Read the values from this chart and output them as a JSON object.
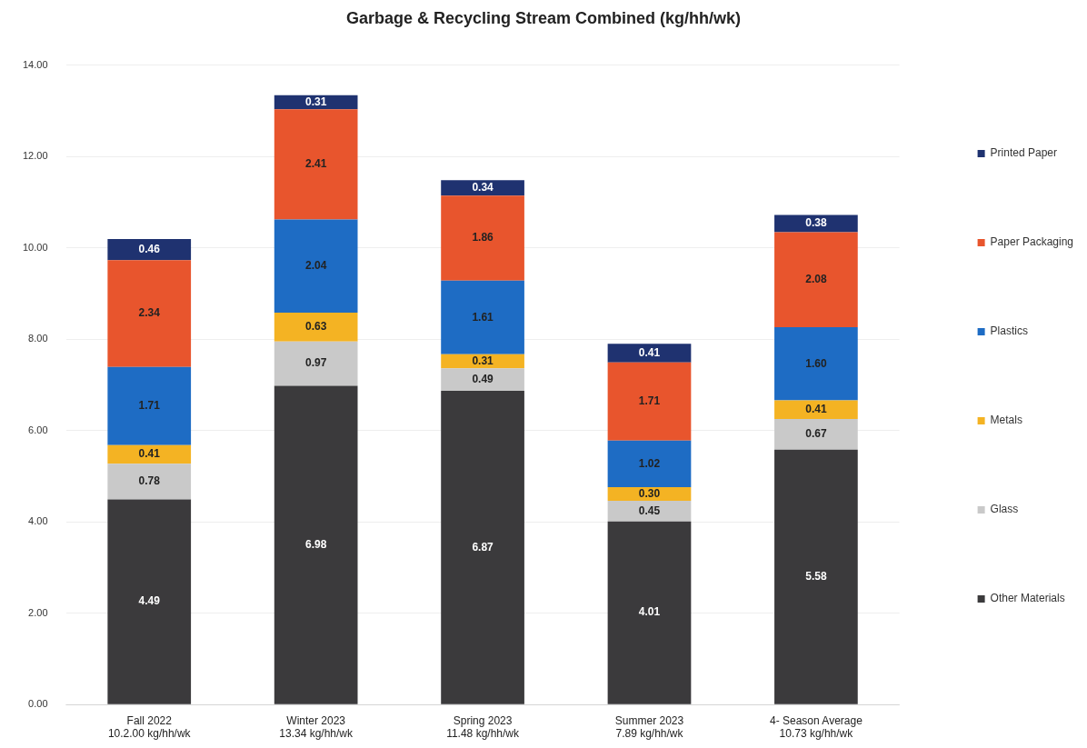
{
  "chart_data": {
    "type": "bar",
    "title": "Garbage & Recycling Stream Combined (kg/hh/wk)",
    "categories": [
      "Fall 2022\n10.2.00 kg/hh/wk",
      "Winter 2023\n13.34 kg/hh/wk",
      "Spring 2023\n11.48 kg/hh/wk",
      "Summer 2023\n7.89 kg/hh/wk",
      "4- Season Average\n10.73 kg/hh/wk"
    ],
    "series": [
      {
        "name": "Other Materials",
        "color": "#3b3a3c",
        "values": [
          4.49,
          6.98,
          6.87,
          4.01,
          5.58
        ],
        "value_labels": [
          "4.49",
          "6.98",
          "6.87",
          "4.01",
          "5.58"
        ]
      },
      {
        "name": "Glass",
        "color": "#c9c9c9",
        "values": [
          0.78,
          0.97,
          0.49,
          0.45,
          0.67
        ],
        "value_labels": [
          "0.78",
          "0.97",
          "0.49",
          "0.45",
          "0.67"
        ]
      },
      {
        "name": "Metals",
        "color": "#f4b323",
        "values": [
          0.41,
          0.63,
          0.31,
          0.3,
          0.41
        ],
        "value_labels": [
          "0.41",
          "0.63",
          "0.31",
          "0.30",
          "0.41"
        ]
      },
      {
        "name": "Plastics",
        "color": "#1e6cc4",
        "values": [
          1.71,
          2.04,
          1.61,
          1.02,
          1.6
        ],
        "value_labels": [
          "1.71",
          "2.04",
          "1.61",
          "1.02",
          "1.60"
        ]
      },
      {
        "name": "Paper Packaging",
        "color": "#e8552d",
        "values": [
          2.34,
          2.41,
          1.86,
          1.71,
          2.08
        ],
        "value_labels": [
          "2.34",
          "2.41",
          "1.86",
          "1.71",
          "2.08"
        ]
      },
      {
        "name": "Printed Paper",
        "color": "#1f3270",
        "values": [
          0.46,
          0.31,
          0.34,
          0.41,
          0.38
        ],
        "value_labels": [
          "0.46",
          "0.31",
          "0.34",
          "0.41",
          "0.38"
        ]
      }
    ],
    "stacked": true,
    "ylim": [
      0,
      14
    ],
    "yticks": [
      {
        "value": 0,
        "label": "0.00"
      },
      {
        "value": 2,
        "label": "2.00"
      },
      {
        "value": 4,
        "label": "4.00"
      },
      {
        "value": 6,
        "label": "6.00"
      },
      {
        "value": 8,
        "label": "8.00"
      },
      {
        "value": 10,
        "label": "10.00"
      },
      {
        "value": 12,
        "label": "12.00"
      },
      {
        "value": 14,
        "label": "14.00"
      }
    ],
    "grid": "y",
    "legend": "right"
  }
}
